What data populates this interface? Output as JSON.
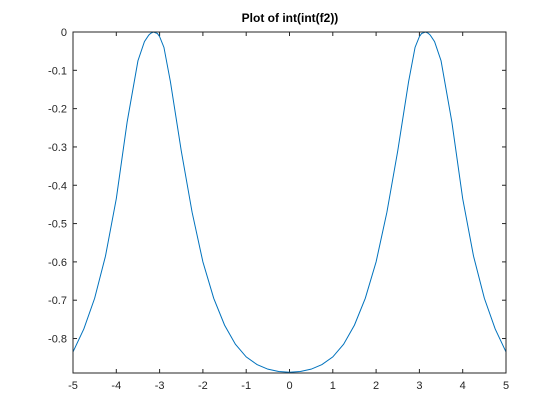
{
  "chart_data": {
    "type": "line",
    "title": "Plot of int(int(f2))",
    "xlabel": "",
    "ylabel": "",
    "xlim": [
      -5,
      5
    ],
    "ylim": [
      -0.89,
      0
    ],
    "grid": false,
    "line_color": "#0072BD",
    "x_ticks": [
      -5,
      -4,
      -3,
      -2,
      -1,
      0,
      1,
      2,
      3,
      4,
      5
    ],
    "x_tick_labels": [
      "-5",
      "-4",
      "-3",
      "-2",
      "-1",
      "0",
      "1",
      "2",
      "3",
      "4",
      "5"
    ],
    "y_ticks": [
      0,
      -0.1,
      -0.2,
      -0.3,
      -0.4,
      -0.5,
      -0.6,
      -0.7,
      -0.8
    ],
    "y_tick_labels": [
      "0",
      "-0.1",
      "-0.2",
      "-0.3",
      "-0.4",
      "-0.5",
      "-0.6",
      "-0.7",
      "-0.8"
    ],
    "series": [
      {
        "x": [
          -5.0,
          -4.75,
          -4.5,
          -4.25,
          -4.0,
          -3.75,
          -3.5,
          -3.35,
          -3.25,
          -3.2,
          -3.14,
          -3.05,
          -3.0,
          -2.9,
          -2.75,
          -2.5,
          -2.25,
          -2.0,
          -1.75,
          -1.5,
          -1.25,
          -1.0,
          -0.75,
          -0.5,
          -0.25,
          0.0,
          0.25,
          0.5,
          0.75,
          1.0,
          1.25,
          1.5,
          1.75,
          2.0,
          2.25,
          2.5,
          2.75,
          2.9,
          3.0,
          3.05,
          3.14,
          3.2,
          3.25,
          3.35,
          3.5,
          3.75,
          4.0,
          4.25,
          4.5,
          4.75,
          5.0
        ],
        "y": [
          -0.835,
          -0.775,
          -0.695,
          -0.585,
          -0.435,
          -0.235,
          -0.075,
          -0.025,
          -0.008,
          -0.003,
          0.0,
          -0.004,
          -0.012,
          -0.04,
          -0.13,
          -0.31,
          -0.47,
          -0.6,
          -0.695,
          -0.765,
          -0.815,
          -0.848,
          -0.868,
          -0.88,
          -0.886,
          -0.888,
          -0.886,
          -0.88,
          -0.868,
          -0.848,
          -0.815,
          -0.765,
          -0.695,
          -0.6,
          -0.47,
          -0.31,
          -0.13,
          -0.04,
          -0.012,
          -0.004,
          0.0,
          -0.003,
          -0.008,
          -0.025,
          -0.075,
          -0.235,
          -0.435,
          -0.585,
          -0.695,
          -0.775,
          -0.835
        ]
      }
    ]
  }
}
